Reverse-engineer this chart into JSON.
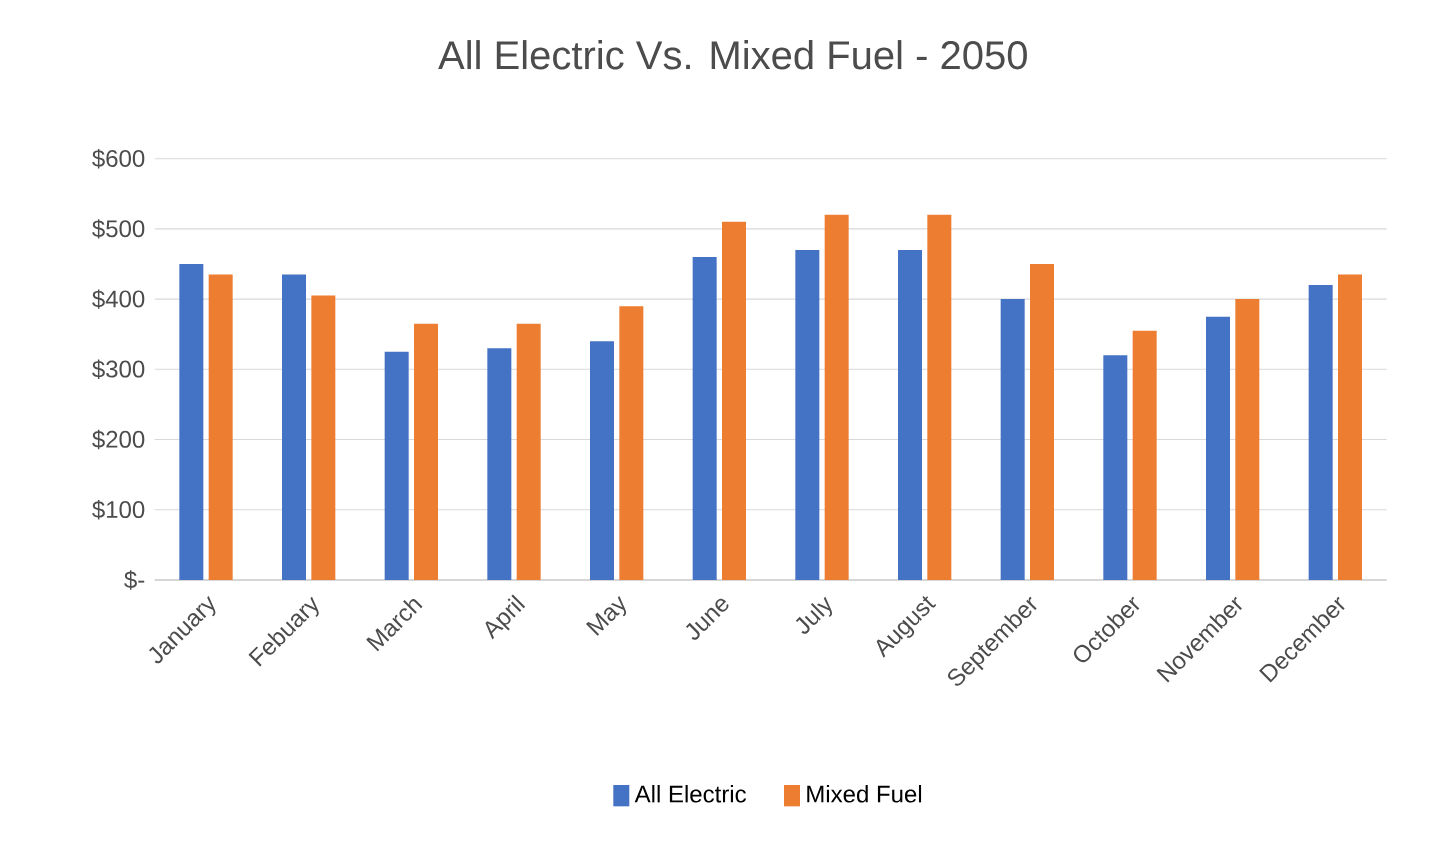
{
  "chart_data": {
    "type": "bar",
    "title": "All Electric Vs. Mixed Fuel - 2050",
    "categories": [
      "January",
      "Febuary",
      "March",
      "April",
      "May",
      "June",
      "July",
      "August",
      "September",
      "October",
      "November",
      "December"
    ],
    "series": [
      {
        "name": "All Electric",
        "color": "#4472c4",
        "values": [
          450,
          435,
          325,
          330,
          340,
          460,
          470,
          470,
          400,
          320,
          375,
          420
        ]
      },
      {
        "name": "Mixed Fuel",
        "color": "#ed7d31",
        "values": [
          435,
          405,
          365,
          365,
          390,
          510,
          520,
          520,
          450,
          355,
          400,
          435
        ]
      }
    ],
    "ylim": [
      0,
      600
    ],
    "yticks": [
      {
        "value": 0,
        "label": "$-"
      },
      {
        "value": 100,
        "label": "$100"
      },
      {
        "value": 200,
        "label": "$200"
      },
      {
        "value": 300,
        "label": "$300"
      },
      {
        "value": 400,
        "label": "$400"
      },
      {
        "value": 500,
        "label": "$500"
      },
      {
        "value": 600,
        "label": "$600"
      }
    ],
    "grid": "y",
    "legend": "bottom"
  }
}
